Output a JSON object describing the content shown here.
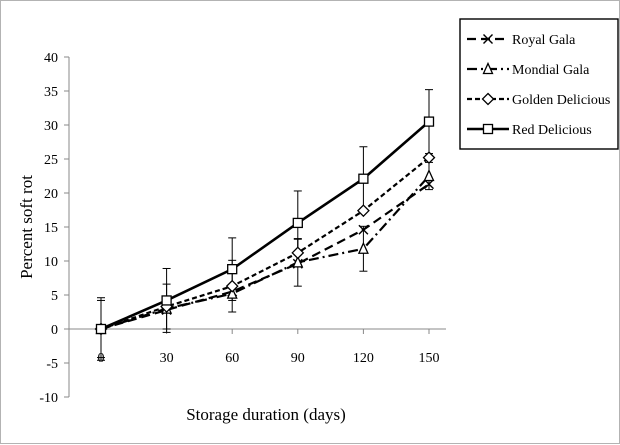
{
  "chart_data": {
    "type": "line",
    "title": "",
    "xlabel": "Storage duration (days)",
    "ylabel": "Percent soft rot",
    "x": [
      0,
      30,
      60,
      90,
      120,
      150
    ],
    "x_tick_labels": [
      "0",
      "30",
      "60",
      "90",
      "120",
      "150"
    ],
    "ylim": [
      -10,
      40
    ],
    "y_ticks": [
      -10,
      -5,
      0,
      5,
      10,
      15,
      20,
      25,
      30,
      35,
      40
    ],
    "y_tick_labels": [
      "-10",
      "-5",
      "0",
      "5",
      "10",
      "15",
      "20",
      "25",
      "30",
      "35",
      "40"
    ],
    "grid": false,
    "legend": "top-right, outside plot area",
    "series": [
      {
        "name": "Royal Gala",
        "marker": "x",
        "line_style": "dashed",
        "values": [
          0,
          2.8,
          5.5,
          9.6,
          14.6,
          21.3
        ],
        "error": [
          0,
          0,
          0,
          0,
          0,
          0
        ]
      },
      {
        "name": "Mondial Gala",
        "marker": "triangle",
        "line_style": "dash-dot",
        "values": [
          0,
          3.0,
          5.2,
          9.8,
          11.8,
          22.5
        ],
        "error": [
          0,
          0,
          0,
          3.5,
          3.3,
          2.0
        ]
      },
      {
        "name": "Golden Delicious",
        "marker": "diamond",
        "line_style": "short-dash",
        "values": [
          0,
          3.3,
          6.3,
          11.2,
          17.4,
          25.2
        ],
        "error": [
          4.2,
          3.3,
          3.8,
          2.0,
          0,
          0
        ]
      },
      {
        "name": "Red Delicious",
        "marker": "square",
        "line_style": "solid",
        "values": [
          0,
          4.2,
          8.8,
          15.6,
          22.1,
          30.5
        ],
        "error": [
          4.6,
          4.7,
          4.6,
          4.7,
          4.7,
          4.7
        ]
      }
    ]
  }
}
